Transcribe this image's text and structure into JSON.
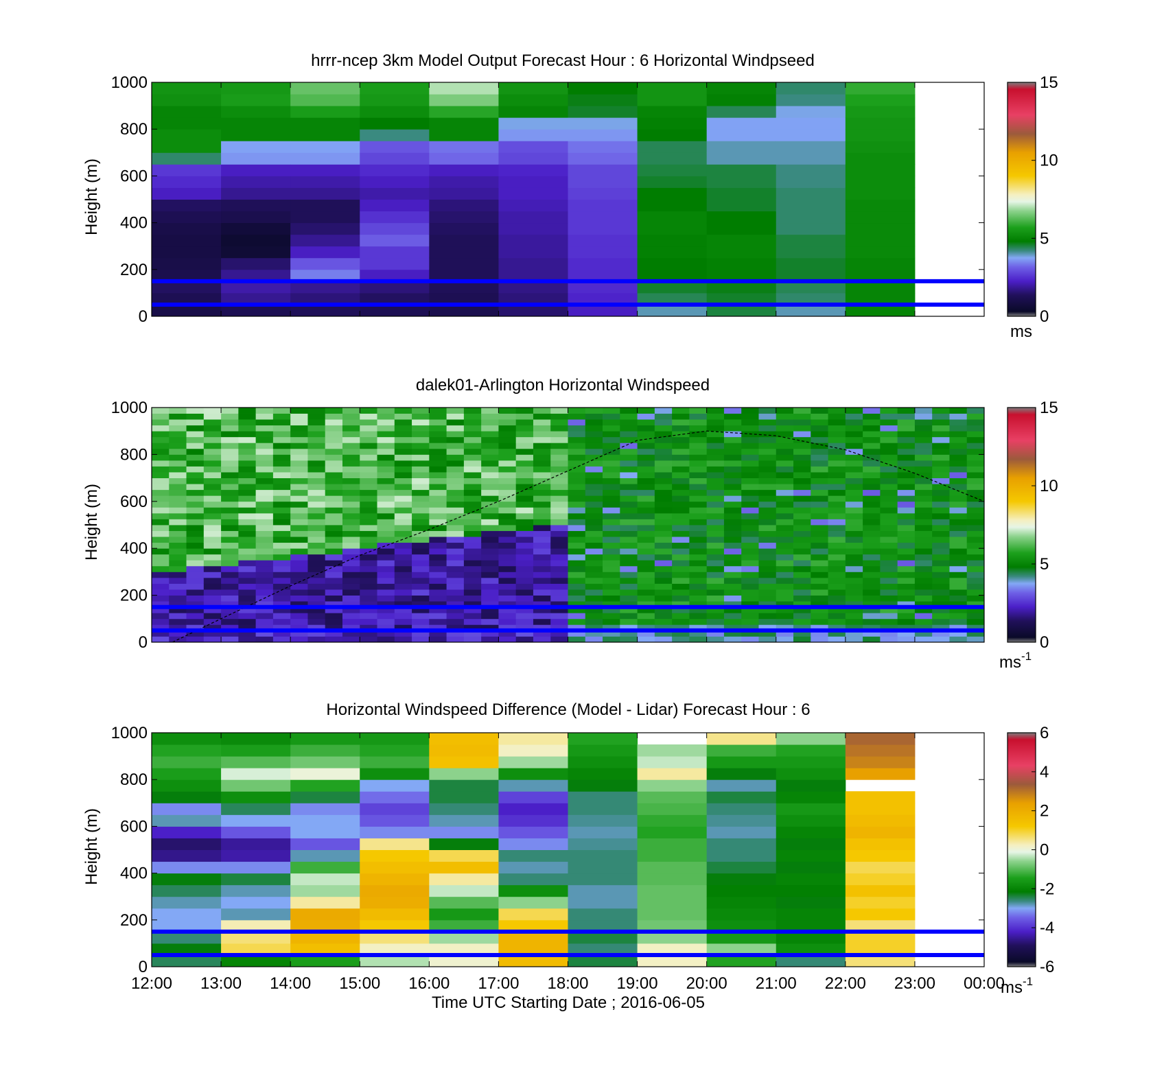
{
  "chart_data": [
    {
      "type": "heatmap",
      "title": "hrrr-ncep 3km Model Output   Forecast Hour : 6 Horizontal Windpseed",
      "ylabel": "Height (m)",
      "xlabel": "",
      "x_ticks": [
        "",
        "",
        "",
        "",
        "",
        "",
        "",
        "",
        "",
        "",
        "",
        "",
        ""
      ],
      "x_range_hours_utc": [
        12,
        24
      ],
      "ylim": [
        0,
        1000
      ],
      "y_ticks": [
        "0",
        "200",
        "400",
        "600",
        "800",
        "1000"
      ],
      "colorbar": {
        "label": "ms",
        "label_sup": "",
        "range": [
          0,
          15
        ],
        "ticks": [
          "0",
          "5",
          "10",
          "15"
        ],
        "tick_values": [
          0,
          5,
          10,
          15
        ]
      },
      "reference_lines_m": [
        50,
        150
      ],
      "heights_m": [
        25,
        75,
        125,
        175,
        225,
        275,
        325,
        375,
        425,
        475,
        525,
        575,
        625,
        675,
        725,
        775,
        825,
        875,
        925,
        975
      ],
      "columns": [
        {
          "hour": "12:00",
          "values": [
            1.0,
            1.2,
            1.4,
            1.1,
            1.0,
            0.9,
            0.9,
            1.0,
            1.2,
            1.4,
            2.2,
            2.4,
            2.6,
            4.3,
            5.2,
            5.2,
            5.0,
            5.0,
            5.3,
            5.4
          ]
        },
        {
          "hour": "13:00",
          "values": [
            1.2,
            1.8,
            2.0,
            1.8,
            1.5,
            0.6,
            0.5,
            0.7,
            1.1,
            1.3,
            1.8,
            2.0,
            2.2,
            3.6,
            3.7,
            5.0,
            5.0,
            5.2,
            5.6,
            5.5
          ]
        },
        {
          "hour": "14:00",
          "values": [
            1.3,
            1.6,
            1.8,
            3.4,
            3.0,
            2.2,
            1.8,
            1.5,
            1.3,
            1.3,
            1.8,
            2.0,
            2.2,
            3.6,
            3.7,
            5.0,
            5.0,
            5.6,
            6.2,
            6.4
          ]
        },
        {
          "hour": "15:00",
          "values": [
            1.2,
            1.4,
            1.6,
            2.2,
            2.6,
            2.6,
            3.1,
            2.8,
            2.5,
            2.2,
            2.0,
            2.2,
            2.4,
            2.8,
            3.0,
            4.2,
            4.8,
            5.2,
            5.5,
            5.6
          ]
        },
        {
          "hour": "16:00",
          "values": [
            1.1,
            1.2,
            1.3,
            1.3,
            1.3,
            1.3,
            1.3,
            1.4,
            1.5,
            1.6,
            1.9,
            2.0,
            2.2,
            3.2,
            3.3,
            5.0,
            5.0,
            5.8,
            6.6,
            7.0
          ]
        },
        {
          "hour": "17:00",
          "values": [
            1.5,
            1.6,
            1.7,
            1.8,
            1.8,
            1.9,
            1.9,
            2.0,
            2.0,
            2.1,
            2.2,
            2.2,
            2.3,
            2.8,
            2.9,
            3.6,
            3.8,
            5.0,
            5.2,
            5.4
          ]
        },
        {
          "hour": "18:00",
          "values": [
            2.2,
            2.3,
            2.4,
            2.4,
            2.4,
            2.5,
            2.5,
            2.6,
            2.6,
            2.6,
            2.7,
            2.8,
            2.8,
            3.2,
            3.3,
            3.6,
            3.8,
            4.6,
            4.7,
            4.8
          ]
        },
        {
          "hour": "19:00",
          "values": [
            4.0,
            4.4,
            4.6,
            4.8,
            4.8,
            4.9,
            4.9,
            5.0,
            5.0,
            4.8,
            4.8,
            4.6,
            4.5,
            4.4,
            4.4,
            4.8,
            4.9,
            5.0,
            5.4,
            5.4
          ]
        },
        {
          "hour": "20:00",
          "values": [
            4.5,
            4.6,
            4.7,
            4.9,
            4.9,
            5.0,
            5.0,
            4.8,
            4.8,
            4.6,
            4.6,
            4.5,
            4.5,
            4.0,
            4.0,
            3.7,
            3.7,
            4.4,
            4.9,
            5.0
          ]
        },
        {
          "hour": "21:00",
          "values": [
            4.0,
            4.3,
            4.4,
            4.6,
            4.6,
            4.5,
            4.5,
            4.3,
            4.3,
            4.3,
            4.3,
            4.2,
            4.2,
            4.0,
            4.0,
            3.7,
            3.7,
            3.8,
            4.2,
            4.3
          ]
        },
        {
          "hour": "22:00",
          "values": [
            5.0,
            5.0,
            5.0,
            5.0,
            5.0,
            5.1,
            5.1,
            5.1,
            5.1,
            5.1,
            5.2,
            5.2,
            5.2,
            5.2,
            5.3,
            5.4,
            5.4,
            5.5,
            5.7,
            5.9
          ]
        }
      ]
    },
    {
      "type": "heatmap",
      "title": "dalek01-Arlington  Horizontal Windspeed",
      "ylabel": "Height (m)",
      "xlabel": "",
      "x_ticks": [
        "",
        "",
        "",
        "",
        "",
        "",
        "",
        "",
        "",
        "",
        "",
        "",
        ""
      ],
      "x_range_hours_utc": [
        12,
        24
      ],
      "ylim": [
        0,
        1000
      ],
      "y_ticks": [
        "0",
        "200",
        "400",
        "600",
        "800",
        "1000"
      ],
      "colorbar": {
        "label": "ms",
        "label_sup": "-1",
        "range": [
          0,
          15
        ],
        "ticks": [
          "0",
          "5",
          "10",
          "15"
        ],
        "tick_values": [
          0,
          5,
          10,
          15
        ]
      },
      "reference_lines_m": [
        50,
        150
      ],
      "curve_description": "dashed line rising from 0 m at about 12:20 UTC to a peak of about 900 m near 20:00 UTC, falling to about 600 m at 24:00 UTC",
      "curve_points": [
        [
          12.3,
          0
        ],
        [
          13.0,
          100
        ],
        [
          14.0,
          240
        ],
        [
          15.0,
          370
        ],
        [
          16.0,
          480
        ],
        [
          17.0,
          600
        ],
        [
          18.0,
          730
        ],
        [
          19.0,
          860
        ],
        [
          20.0,
          900
        ],
        [
          21.0,
          880
        ],
        [
          22.0,
          820
        ],
        [
          23.0,
          720
        ],
        [
          24.0,
          600
        ]
      ],
      "description": "lidar profiles binned ~25 min; mostly purple/blue (0-3 m/s) below about 450 m from 12:00 to 18:00, green (4-7 m/s) above; green throughout after 18:00"
    },
    {
      "type": "heatmap",
      "title": "Horizontal Windspeed Difference (Model - Lidar) Forecast Hour : 6",
      "ylabel": "Height (m)",
      "xlabel": "Time UTC  Starting Date ; 2016-06-05",
      "x_ticks": [
        "12:00",
        "13:00",
        "14:00",
        "15:00",
        "16:00",
        "17:00",
        "18:00",
        "19:00",
        "20:00",
        "21:00",
        "22:00",
        "23:00",
        "00:00"
      ],
      "x_range_hours_utc": [
        12,
        24
      ],
      "ylim": [
        0,
        1000
      ],
      "y_ticks": [
        "0",
        "200",
        "400",
        "600",
        "800",
        "1000"
      ],
      "colorbar": {
        "label": "ms",
        "label_sup": "-1",
        "range": [
          -6,
          6
        ],
        "ticks": [
          "-6",
          "-4",
          "-2",
          "0",
          "2",
          "4",
          "6"
        ],
        "tick_values": [
          -6,
          -4,
          -2,
          0,
          2,
          4,
          6
        ]
      },
      "reference_lines_m": [
        50,
        150
      ],
      "heights_m": [
        25,
        75,
        125,
        175,
        225,
        275,
        325,
        375,
        425,
        475,
        525,
        575,
        625,
        675,
        725,
        775,
        825,
        875,
        925,
        975
      ],
      "columns": [
        {
          "hour": "12:00",
          "values": [
            -2.5,
            -2.2,
            -2.6,
            -3.0,
            -3.0,
            -2.8,
            -2.5,
            -2.2,
            -3.2,
            -4.6,
            -4.8,
            -4.2,
            -2.8,
            -3.2,
            -2.2,
            -1.8,
            -1.5,
            -1.2,
            -1.4,
            -1.8
          ]
        },
        {
          "hour": "13:00",
          "values": [
            -2.0,
            0.8,
            0.6,
            0.3,
            -2.8,
            -3.0,
            -2.8,
            -2.4,
            -3.2,
            -4.4,
            -4.5,
            -3.6,
            -3.0,
            -2.5,
            -1.8,
            -0.8,
            -0.2,
            -1.0,
            -1.5,
            -1.9
          ]
        },
        {
          "hour": "14:00",
          "values": [
            -1.5,
            1.5,
            1.8,
            2.0,
            2.1,
            0.4,
            -0.5,
            -0.3,
            -1.2,
            -2.8,
            -3.6,
            -3.0,
            -3.0,
            -3.2,
            -2.4,
            -1.4,
            0.0,
            -0.8,
            -1.2,
            -1.6
          ]
        },
        {
          "hour": "15:00",
          "values": [
            -0.4,
            0.2,
            0.6,
            1.2,
            1.6,
            2.0,
            2.1,
            1.8,
            1.5,
            1.2,
            0.5,
            -3.2,
            -3.6,
            -3.8,
            -3.4,
            -3.0,
            -1.8,
            -1.2,
            -1.4,
            -1.6
          ]
        },
        {
          "hour": "16:00",
          "values": [
            0.1,
            0.2,
            -0.5,
            -1.2,
            -1.6,
            -1.0,
            -0.3,
            0.4,
            1.5,
            0.8,
            -2.2,
            -3.2,
            -2.8,
            -2.6,
            -2.4,
            -2.4,
            -0.6,
            1.4,
            1.6,
            1.5
          ]
        },
        {
          "hour": "17:00",
          "values": [
            1.6,
            1.8,
            1.8,
            1.2,
            0.8,
            -0.6,
            -1.8,
            -2.6,
            -2.8,
            -2.6,
            -3.2,
            -3.6,
            -4.0,
            -4.2,
            -3.8,
            -2.8,
            -1.8,
            -0.5,
            0.2,
            0.4
          ]
        },
        {
          "hour": "18:00",
          "values": [
            -2.4,
            -2.6,
            -2.4,
            -2.6,
            -2.6,
            -2.8,
            -2.8,
            -2.6,
            -2.6,
            -2.6,
            -2.7,
            -2.8,
            -2.7,
            -2.6,
            -2.6,
            -2.2,
            -2.0,
            -1.8,
            -1.6,
            -1.4
          ]
        },
        {
          "hour": "19:00",
          "values": [
            0.2,
            0.2,
            -0.6,
            -0.8,
            -0.9,
            -0.9,
            -0.9,
            -1.0,
            -1.0,
            -1.2,
            -1.2,
            -1.4,
            -1.3,
            -1.1,
            -1.0,
            -0.6,
            0.4,
            -0.3,
            -0.5,
            null
          ]
        },
        {
          "hour": "20:00",
          "values": [
            -1.4,
            -0.6,
            -1.6,
            -1.8,
            -1.9,
            -2.0,
            -2.1,
            -2.2,
            -2.4,
            -2.6,
            -2.6,
            -2.8,
            -2.7,
            -2.6,
            -2.4,
            -2.8,
            -2.2,
            -1.6,
            -1.2,
            0.5
          ]
        },
        {
          "hour": "21:00",
          "values": [
            -2.6,
            -1.8,
            -2.0,
            -2.0,
            -2.0,
            -2.2,
            -2.1,
            -2.0,
            -2.2,
            -2.0,
            -2.2,
            -2.0,
            -1.8,
            -1.6,
            -2.0,
            -2.2,
            -1.8,
            -1.6,
            -1.4,
            -0.6
          ]
        },
        {
          "hour": "22:00",
          "values": [
            0.6,
            1.0,
            1.0,
            0.6,
            1.2,
            1.0,
            1.4,
            1.0,
            0.8,
            1.2,
            1.4,
            1.8,
            1.6,
            1.4,
            1.4,
            null,
            2.4,
            2.8,
            3.0,
            3.2
          ]
        }
      ]
    }
  ]
}
